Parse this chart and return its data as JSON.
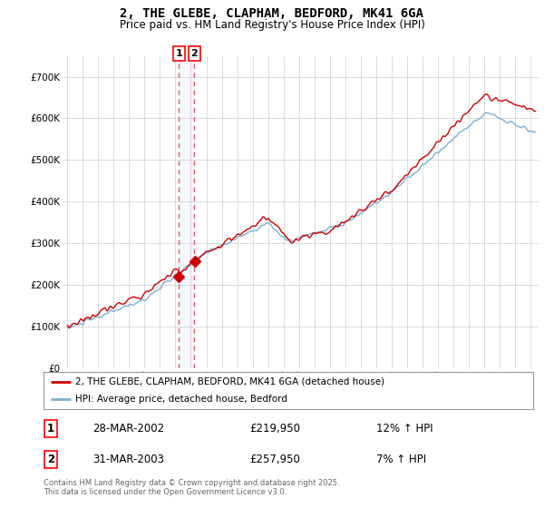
{
  "title": "2, THE GLEBE, CLAPHAM, BEDFORD, MK41 6GA",
  "subtitle": "Price paid vs. HM Land Registry's House Price Index (HPI)",
  "ylim": [
    0,
    750000
  ],
  "yticks": [
    0,
    100000,
    200000,
    300000,
    400000,
    500000,
    600000,
    700000
  ],
  "ytick_labels": [
    "£0",
    "£100K",
    "£200K",
    "£300K",
    "£400K",
    "£500K",
    "£600K",
    "£700K"
  ],
  "line1_color": "#cc0000",
  "line2_color": "#7aafd4",
  "vline_color": "#e06060",
  "legend1": "2, THE GLEBE, CLAPHAM, BEDFORD, MK41 6GA (detached house)",
  "legend2": "HPI: Average price, detached house, Bedford",
  "purchase1_date": "28-MAR-2002",
  "purchase1_price": "£219,950",
  "purchase1_hpi": "12% ↑ HPI",
  "purchase2_date": "31-MAR-2003",
  "purchase2_price": "£257,950",
  "purchase2_hpi": "7% ↑ HPI",
  "footnote": "Contains HM Land Registry data © Crown copyright and database right 2025.\nThis data is licensed under the Open Government Licence v3.0.",
  "bg_color": "#ffffff",
  "grid_color": "#cccccc",
  "purchase1_year": 2002.23,
  "purchase2_year": 2003.23,
  "xlim_left": 1994.7,
  "xlim_right": 2025.5
}
